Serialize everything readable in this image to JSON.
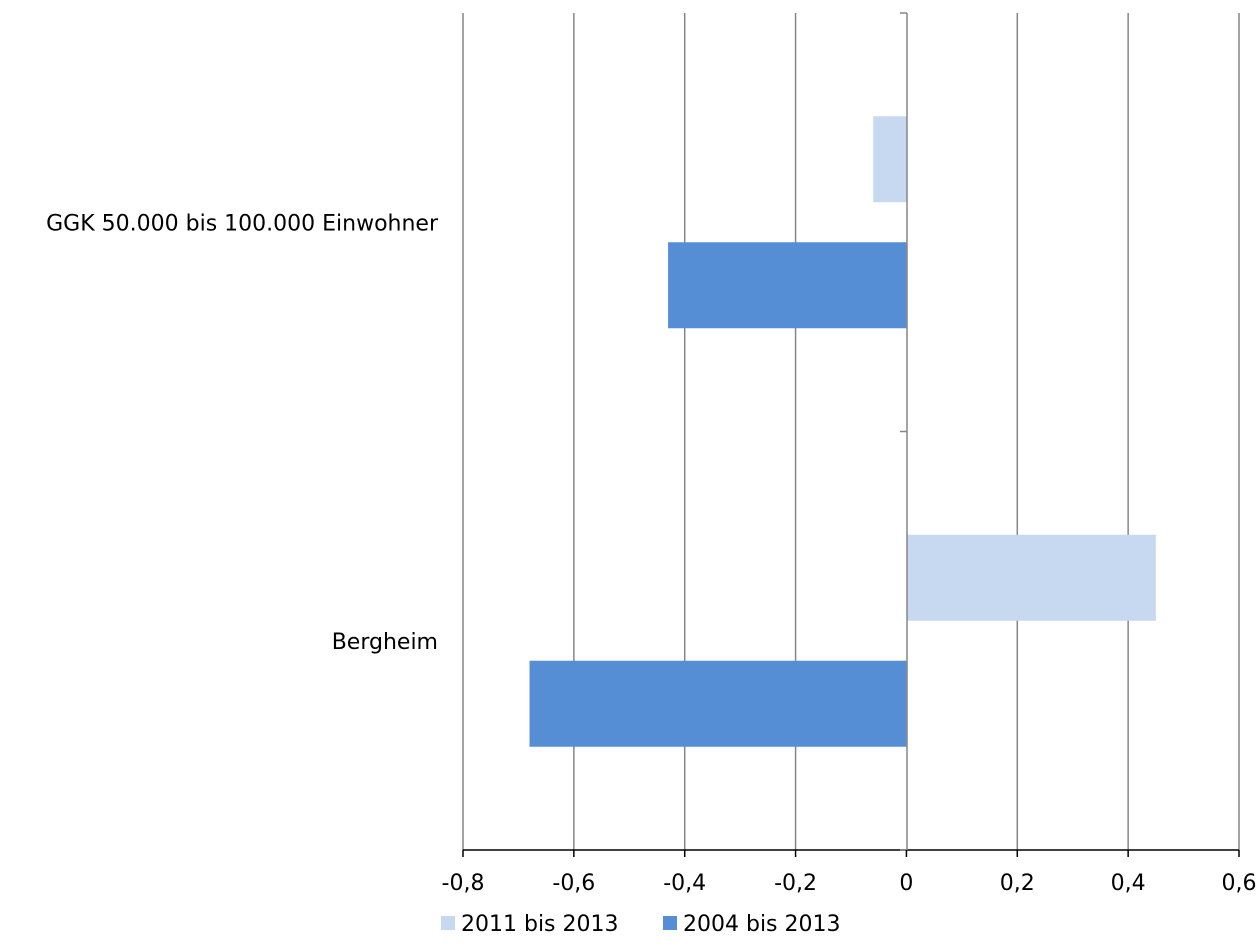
{
  "chart_data": {
    "type": "bar",
    "orientation": "horizontal",
    "categories": [
      "GGK 50.000 bis 100.000 Einwohner",
      "Bergheim"
    ],
    "series": [
      {
        "name": "2011 bis 2013",
        "values": [
          -0.06,
          0.45
        ],
        "color": "#c6d9f1"
      },
      {
        "name": "2004 bis 2013",
        "values": [
          -0.43,
          -0.68
        ],
        "color": "#558ed5"
      }
    ],
    "xlim": [
      -0.8,
      0.6
    ],
    "x_ticks": [
      -0.8,
      -0.6,
      -0.4,
      -0.2,
      0,
      0.2,
      0.4,
      0.6
    ],
    "x_tick_labels": [
      "-0,8",
      "-0,6",
      "-0,4",
      "-0,2",
      "0",
      "0,2",
      "0,4",
      "0,6"
    ],
    "grid": "vertical",
    "legend_position": "bottom",
    "title": "",
    "xlabel": "",
    "ylabel": ""
  }
}
